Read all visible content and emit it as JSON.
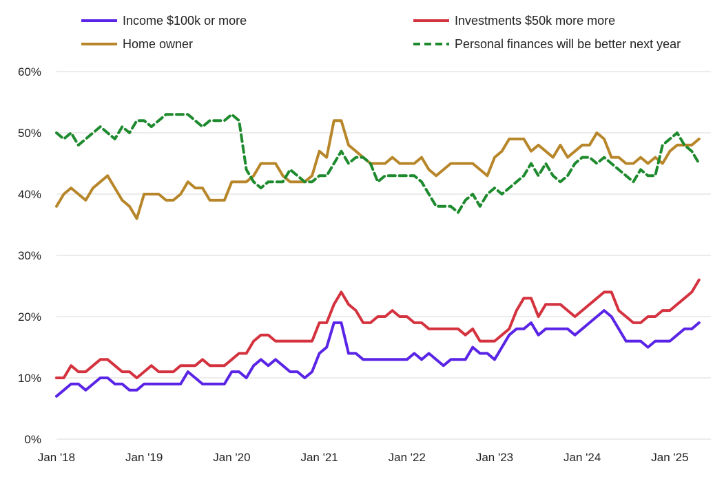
{
  "chart_data": {
    "type": "line",
    "title": "",
    "xlabel": "",
    "ylabel": "",
    "ylim": [
      0,
      60
    ],
    "y_ticks": [
      0,
      10,
      20,
      30,
      40,
      50,
      60
    ],
    "y_tick_labels": [
      "0%",
      "10%",
      "20%",
      "30%",
      "40%",
      "50%",
      "60%"
    ],
    "x_start": "Jan 2018",
    "x_tick_labels": [
      "Jan '18",
      "Jan '19",
      "Jan '20",
      "Jan '21",
      "Jan '22",
      "Jan '23",
      "Jan '24",
      "Jan '25"
    ],
    "grid": true,
    "legend_placement": "top",
    "x_months": [
      "Jan '18",
      "Feb '18",
      "Mar '18",
      "Apr '18",
      "May '18",
      "Jun '18",
      "Jul '18",
      "Aug '18",
      "Sep '18",
      "Oct '18",
      "Nov '18",
      "Dec '18",
      "Jan '19",
      "Feb '19",
      "Mar '19",
      "Apr '19",
      "May '19",
      "Jun '19",
      "Jul '19",
      "Aug '19",
      "Sep '19",
      "Oct '19",
      "Nov '19",
      "Dec '19",
      "Jan '20",
      "Feb '20",
      "Mar '20",
      "Apr '20",
      "May '20",
      "Jun '20",
      "Jul '20",
      "Aug '20",
      "Sep '20",
      "Oct '20",
      "Nov '20",
      "Dec '20",
      "Jan '21",
      "Feb '21",
      "Mar '21",
      "Apr '21",
      "May '21",
      "Jun '21",
      "Jul '21",
      "Aug '21",
      "Sep '21",
      "Oct '21",
      "Nov '21",
      "Dec '21",
      "Jan '22",
      "Feb '22",
      "Mar '22",
      "Apr '22",
      "May '22",
      "Jun '22",
      "Jul '22",
      "Aug '22",
      "Sep '22",
      "Oct '22",
      "Nov '22",
      "Dec '22",
      "Jan '23",
      "Feb '23",
      "Mar '23",
      "Apr '23",
      "May '23",
      "Jun '23",
      "Jul '23",
      "Aug '23",
      "Sep '23",
      "Oct '23",
      "Nov '23",
      "Dec '23",
      "Jan '24",
      "Feb '24",
      "Mar '24",
      "Apr '24",
      "May '24",
      "Jun '24",
      "Jul '24",
      "Aug '24",
      "Sep '24",
      "Oct '24",
      "Nov '24",
      "Dec '24",
      "Jan '25",
      "Feb '25",
      "Mar '25",
      "Apr '25",
      "May '25"
    ],
    "series": [
      {
        "name": "Income $100k or more",
        "color": "#5a24e6",
        "dash": "solid",
        "values": [
          7,
          8,
          9,
          9,
          8,
          9,
          10,
          10,
          9,
          9,
          8,
          8,
          9,
          9,
          9,
          9,
          9,
          9,
          11,
          10,
          9,
          9,
          9,
          9,
          11,
          11,
          10,
          12,
          13,
          12,
          13,
          12,
          11,
          11,
          10,
          11,
          14,
          15,
          19,
          19,
          14,
          14,
          13,
          13,
          13,
          13,
          13,
          13,
          13,
          14,
          13,
          14,
          13,
          12,
          13,
          13,
          13,
          15,
          14,
          14,
          13,
          15,
          17,
          18,
          18,
          19,
          17,
          18,
          18,
          18,
          18,
          17,
          18,
          19,
          20,
          21,
          20,
          18,
          16,
          16,
          16,
          15,
          16,
          16,
          16,
          17,
          18,
          18,
          19
        ]
      },
      {
        "name": "Investments $50k more more",
        "color": "#d4323e",
        "dash": "solid",
        "values": [
          10,
          10,
          12,
          11,
          11,
          12,
          13,
          13,
          12,
          11,
          11,
          10,
          11,
          12,
          11,
          11,
          11,
          12,
          12,
          12,
          13,
          12,
          12,
          12,
          13,
          14,
          14,
          16,
          17,
          17,
          16,
          16,
          16,
          16,
          16,
          16,
          19,
          19,
          22,
          24,
          22,
          21,
          19,
          19,
          20,
          20,
          21,
          20,
          20,
          19,
          19,
          18,
          18,
          18,
          18,
          18,
          17,
          18,
          16,
          16,
          16,
          17,
          18,
          21,
          23,
          23,
          20,
          22,
          22,
          22,
          21,
          20,
          21,
          22,
          23,
          24,
          24,
          21,
          20,
          19,
          19,
          20,
          20,
          21,
          21,
          22,
          23,
          24,
          26
        ]
      },
      {
        "name": "Home owner",
        "color": "#b8862a",
        "dash": "solid",
        "values": [
          38,
          40,
          41,
          40,
          39,
          41,
          42,
          43,
          41,
          39,
          38,
          36,
          40,
          40,
          40,
          39,
          39,
          40,
          42,
          41,
          41,
          39,
          39,
          39,
          42,
          42,
          42,
          43,
          45,
          45,
          45,
          43,
          42,
          42,
          42,
          43,
          47,
          46,
          52,
          52,
          48,
          47,
          46,
          45,
          45,
          45,
          46,
          45,
          45,
          45,
          46,
          44,
          43,
          44,
          45,
          45,
          45,
          45,
          44,
          43,
          46,
          47,
          49,
          49,
          49,
          47,
          48,
          47,
          46,
          48,
          46,
          47,
          48,
          48,
          50,
          49,
          46,
          46,
          45,
          45,
          46,
          45,
          46,
          45,
          47,
          48,
          48,
          48,
          49
        ]
      },
      {
        "name": "Personal finances will be better next year",
        "color": "#1e8a2e",
        "dash": "dashed",
        "values": [
          50,
          49,
          50,
          48,
          49,
          50,
          51,
          50,
          49,
          51,
          50,
          52,
          52,
          51,
          52,
          53,
          53,
          53,
          53,
          52,
          51,
          52,
          52,
          52,
          53,
          52,
          44,
          42,
          41,
          42,
          42,
          42,
          44,
          43,
          42,
          42,
          43,
          43,
          45,
          47,
          45,
          46,
          46,
          45,
          42,
          43,
          43,
          43,
          43,
          43,
          42,
          40,
          38,
          38,
          38,
          37,
          39,
          40,
          38,
          40,
          41,
          40,
          41,
          42,
          43,
          45,
          43,
          45,
          43,
          42,
          43,
          45,
          46,
          46,
          45,
          46,
          45,
          44,
          43,
          42,
          44,
          43,
          43,
          48,
          49,
          50,
          48,
          47,
          45
        ]
      }
    ]
  },
  "legend": {
    "item1": "Income $100k or more",
    "item2": "Investments $50k more more",
    "item3": "Home owner",
    "item4": "Personal finances will be better next year"
  }
}
